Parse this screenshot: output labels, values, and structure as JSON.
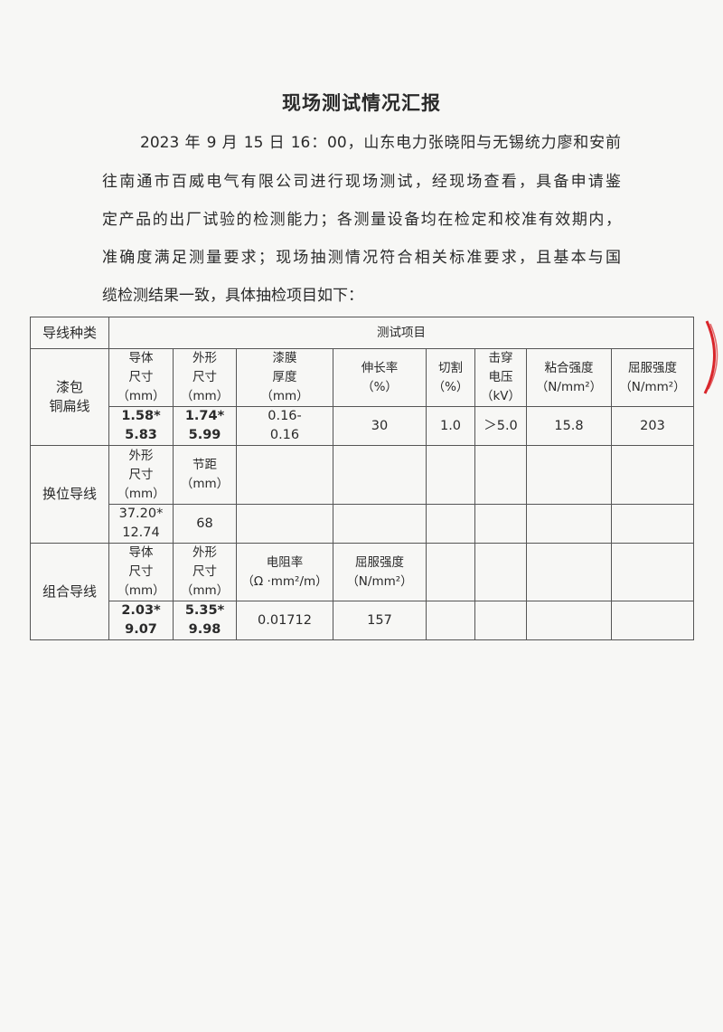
{
  "title": "现场测试情况汇报",
  "paragraph_lines": [
    "2023 年 9 月 15 日 16：00，山东电力张晓阳与无锡统力廖和安前",
    "往南通市百威电气有限公司进行现场测试，经现场查看，具备申请鉴",
    "定产品的出厂试验的检测能力；各测量设备均在检定和校准有效期内，",
    "准确度满足测量要求；现场抽测情况符合相关标准要求，且基本与国",
    "缆检测结果一致，具体抽检项目如下："
  ],
  "table": {
    "header_kind": "导线种类",
    "header_items": "测试项目",
    "enameled": {
      "kind": "漆包\n铜扁线",
      "labels": [
        "导体\n尺寸\n（mm）",
        "外形\n尺寸\n（mm）",
        "漆膜\n厚度\n（mm）",
        "伸长率\n（%）",
        "切割\n（%）",
        "击穿\n电压\n（kV）",
        "粘合强度\n（N/mm²）",
        "屈服强度\n（N/mm²）"
      ],
      "values": [
        "1.58*\n5.83",
        "1.74*\n5.99",
        "0.16-\n0.16",
        "30",
        "1.0",
        "＞5.0",
        "15.8",
        "203"
      ]
    },
    "transposed": {
      "kind": "换位导线",
      "labels": [
        "外形\n尺寸\n（mm）",
        "节距\n（mm）",
        "",
        "",
        "",
        "",
        "",
        ""
      ],
      "values": [
        "37.20*\n12.74",
        "68",
        "",
        "",
        "",
        "",
        "",
        ""
      ]
    },
    "combined": {
      "kind": "组合导线",
      "labels": [
        "导体\n尺寸\n（mm）",
        "外形\n尺寸\n（mm）",
        "电阻率\n（Ω ·mm²/m）",
        "屈服强度\n（N/mm²）",
        "",
        "",
        "",
        ""
      ],
      "values": [
        "2.03*\n9.07",
        "5.35*\n9.98",
        "0.01712",
        "157",
        "",
        "",
        "",
        ""
      ]
    }
  },
  "colors": {
    "text": "#2a2a2a",
    "paper": "#f7f7f5",
    "stamp": "#d9262b"
  }
}
